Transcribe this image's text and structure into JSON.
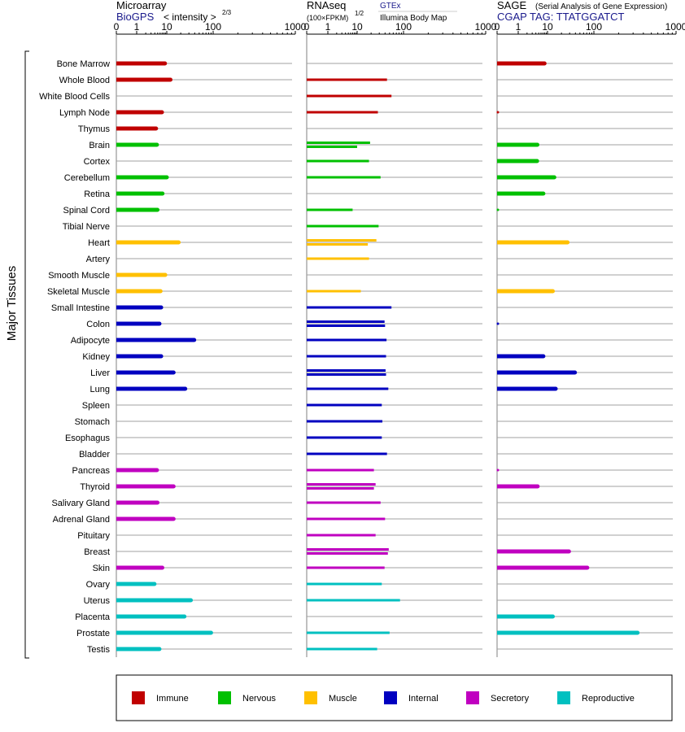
{
  "panels": {
    "micro": {
      "title": "Microarray",
      "subtitle": "BioGPS",
      "metric": "< intensity >",
      "metric_exp": "2/3",
      "ticks": [
        "0",
        "1",
        "10",
        "100",
        "1000"
      ]
    },
    "rna": {
      "title": "RNAseq",
      "metric": "(100×FPKM)",
      "metric_exp": "1/2",
      "source_a": "GTEx",
      "source_b": "Illumina Body Map",
      "ticks": [
        "0",
        "1",
        "10",
        "100",
        "1000"
      ]
    },
    "sage": {
      "title": "SAGE",
      "title_note": "(Serial Analysis of Gene Expression)",
      "subtitle": "CGAP TAG: TTATGGATCT",
      "ticks": [
        "0",
        "1",
        "10",
        "100",
        "1000"
      ]
    }
  },
  "ylabel": "Major Tissues",
  "legend": [
    {
      "name": "Immune",
      "color": "#c00000"
    },
    {
      "name": "Nervous",
      "color": "#00c000"
    },
    {
      "name": "Muscle",
      "color": "#ffc000"
    },
    {
      "name": "Internal",
      "color": "#0000c0"
    },
    {
      "name": "Secretory",
      "color": "#c000c0"
    },
    {
      "name": "Reproductive",
      "color": "#00c0c0"
    }
  ],
  "chart_data": {
    "type": "bar",
    "axis_scale": "transformed: ticks 0,1,10,100,1000",
    "xlim": [
      0,
      1000
    ],
    "categories": [
      "Bone Marrow",
      "Whole Blood",
      "White Blood Cells",
      "Lymph Node",
      "Thymus",
      "Brain",
      "Cortex",
      "Cerebellum",
      "Retina",
      "Spinal Cord",
      "Tibial Nerve",
      "Heart",
      "Artery",
      "Smooth Muscle",
      "Skeletal Muscle",
      "Small Intestine",
      "Colon",
      "Adipocyte",
      "Kidney",
      "Liver",
      "Lung",
      "Spleen",
      "Stomach",
      "Esophagus",
      "Bladder",
      "Pancreas",
      "Thyroid",
      "Salivary Gland",
      "Adrenal Gland",
      "Pituitary",
      "Breast",
      "Skin",
      "Ovary",
      "Uterus",
      "Placenta",
      "Prostate",
      "Testis"
    ],
    "groups": [
      "Immune",
      "Immune",
      "Immune",
      "Immune",
      "Immune",
      "Nervous",
      "Nervous",
      "Nervous",
      "Nervous",
      "Nervous",
      "Nervous",
      "Muscle",
      "Muscle",
      "Muscle",
      "Muscle",
      "Internal",
      "Internal",
      "Internal",
      "Internal",
      "Internal",
      "Internal",
      "Internal",
      "Internal",
      "Internal",
      "Internal",
      "Secretory",
      "Secretory",
      "Secretory",
      "Secretory",
      "Secretory",
      "Secretory",
      "Secretory",
      "Reproductive",
      "Reproductive",
      "Reproductive",
      "Reproductive",
      "Reproductive"
    ],
    "microarray": [
      8.7,
      12,
      null,
      6.9,
      4.4,
      4.7,
      null,
      10,
      7.2,
      4.9,
      null,
      18,
      null,
      8.9,
      6.2,
      6.5,
      5.7,
      39,
      6.5,
      14,
      25,
      null,
      null,
      null,
      null,
      4.7,
      14,
      4.9,
      14,
      null,
      null,
      7.1,
      3.9,
      33,
      24,
      90,
      5.7
    ],
    "rnaseq_gtex": [
      null,
      null,
      null,
      null,
      null,
      19,
      18,
      null,
      null,
      null,
      null,
      26,
      null,
      null,
      null,
      null,
      39,
      null,
      null,
      41,
      null,
      null,
      null,
      null,
      null,
      null,
      25,
      null,
      null,
      null,
      48,
      null,
      null,
      null,
      null,
      null,
      null
    ],
    "rnaseq_illumina": [
      null,
      44,
      55,
      28,
      null,
      10,
      null,
      32,
      null,
      7,
      29,
      17,
      18,
      null,
      12,
      55,
      40,
      43,
      42,
      42,
      47,
      34,
      35,
      34,
      44,
      23,
      23,
      32,
      40,
      25,
      46,
      39,
      34,
      84,
      null,
      50,
      27
    ],
    "sage": [
      7.9,
      null,
      null,
      0,
      null,
      4.5,
      4.4,
      14,
      7.2,
      0,
      null,
      27,
      null,
      null,
      13,
      null,
      0,
      null,
      7.2,
      39,
      15,
      null,
      null,
      null,
      null,
      0,
      4.6,
      null,
      null,
      null,
      29,
      72,
      null,
      null,
      13,
      340,
      null
    ]
  }
}
